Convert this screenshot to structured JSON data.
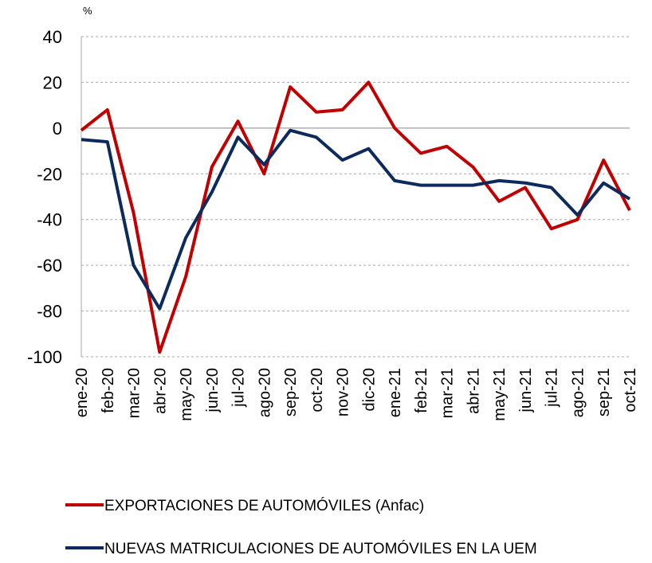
{
  "chart_data": {
    "type": "line",
    "y_unit": "%",
    "categories": [
      "ene-20",
      "feb-20",
      "mar-20",
      "abr-20",
      "may-20",
      "jun-20",
      "jul-20",
      "ago-20",
      "sep-20",
      "oct-20",
      "nov-20",
      "dic-20",
      "ene-21",
      "feb-21",
      "mar-21",
      "abr-21",
      "may-21",
      "jun-21",
      "jul-21",
      "ago-21",
      "sep-21",
      "oct-21"
    ],
    "series": [
      {
        "name": "EXPORTACIONES DE AUTOMÓVILES (Anfac)",
        "color": "#c00000",
        "values": [
          -1,
          8,
          -37,
          -98,
          -65,
          -17,
          3,
          -20,
          18,
          7,
          8,
          20,
          0,
          -11,
          -8,
          -17,
          -32,
          -26,
          -44,
          -40,
          -14,
          -36
        ]
      },
      {
        "name": "NUEVAS MATRICULACIONES DE AUTOMÓVILES EN LA UEM",
        "color": "#0d2a5c",
        "values": [
          -5,
          -6,
          -60,
          -79,
          -48,
          -28,
          -4,
          -16,
          -1,
          -4,
          -14,
          -9,
          -23,
          -25,
          -25,
          -25,
          -23,
          -24,
          -26,
          -38,
          -24,
          -31
        ]
      }
    ],
    "ylim": [
      -100,
      40
    ],
    "yticks": [
      -100,
      -80,
      -60,
      -40,
      -20,
      0,
      20,
      40
    ],
    "grid": true
  }
}
